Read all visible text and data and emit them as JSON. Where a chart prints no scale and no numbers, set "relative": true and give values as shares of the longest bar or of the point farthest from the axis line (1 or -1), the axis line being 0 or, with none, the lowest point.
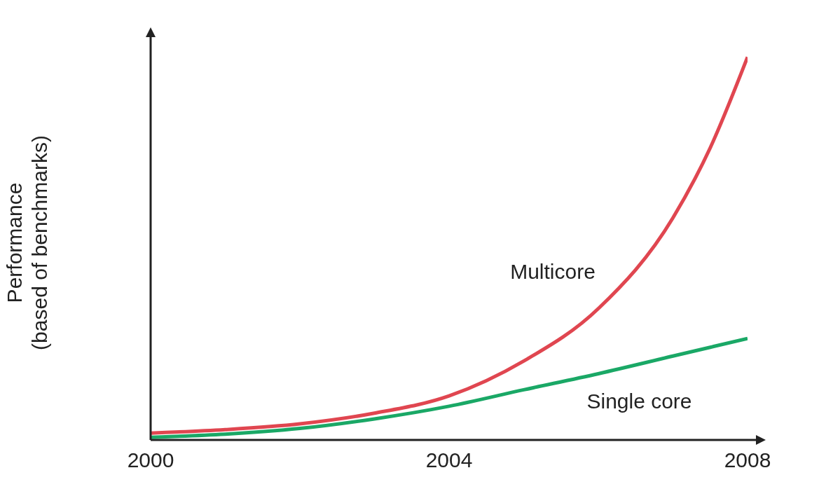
{
  "chart_data": {
    "type": "line",
    "relative": true,
    "ylabel": "Performance\n(based of benchmarks)",
    "x": [
      2000,
      2001,
      2002,
      2003,
      2004,
      2005,
      2006,
      2007,
      2007.5,
      2008
    ],
    "xlim": [
      2000,
      2008
    ],
    "xticks": [
      2000,
      2004,
      2008
    ],
    "grid": false,
    "legend": false,
    "marker": "none",
    "series": [
      {
        "name": "Multicore",
        "color": "#e04650",
        "values": [
          0.018,
          0.027,
          0.042,
          0.07,
          0.115,
          0.206,
          0.343,
          0.58,
          0.763,
          1
        ]
      },
      {
        "name": "Single core",
        "color": "#1aa866",
        "values": [
          0.007,
          0.015,
          0.03,
          0.055,
          0.088,
          0.131,
          0.173,
          0.219,
          0.242,
          0.265
        ]
      }
    ]
  }
}
